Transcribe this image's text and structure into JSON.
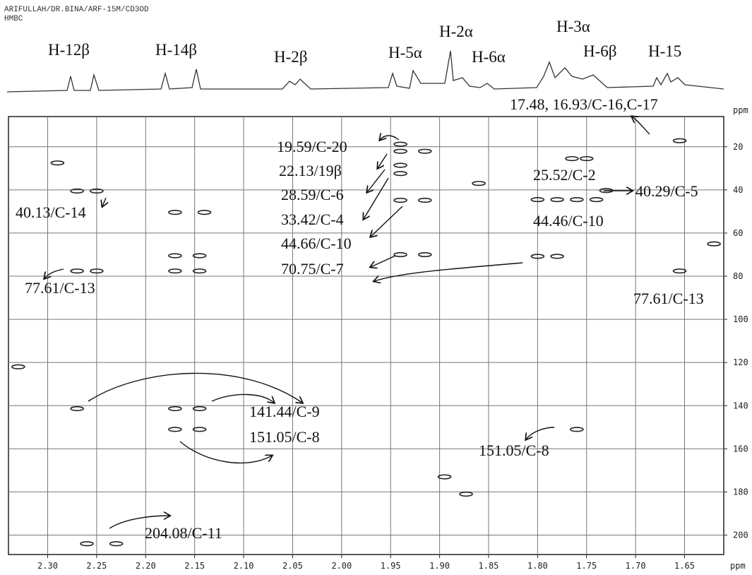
{
  "header": [
    "ARIFULLAH/DR.BINA/ARF-15M/CD3OD",
    "HMBC"
  ],
  "chart_data": {
    "type": "scatter",
    "x_label": "ppm",
    "y_label": "ppm",
    "xlim": [
      2.34,
      1.61
    ],
    "ylim": [
      6,
      209
    ],
    "xticks": [
      {
        "value": 2.3,
        "label": "2.30"
      },
      {
        "value": 2.25,
        "label": "2.25"
      },
      {
        "value": 2.2,
        "label": "2.20"
      },
      {
        "value": 2.15,
        "label": "2.15"
      },
      {
        "value": 2.1,
        "label": "2.10"
      },
      {
        "value": 2.05,
        "label": "2.05"
      },
      {
        "value": 2.0,
        "label": "2.00"
      },
      {
        "value": 1.95,
        "label": "1.95"
      },
      {
        "value": 1.9,
        "label": "1.90"
      },
      {
        "value": 1.85,
        "label": "1.85"
      },
      {
        "value": 1.8,
        "label": "1.80"
      },
      {
        "value": 1.75,
        "label": "1.75"
      },
      {
        "value": 1.7,
        "label": "1.70"
      },
      {
        "value": 1.65,
        "label": "1.65"
      }
    ],
    "yticks": [
      20,
      40,
      60,
      80,
      100,
      120,
      140,
      160,
      180,
      200
    ],
    "grid": true,
    "color": "#222",
    "x": [
      2.27,
      2.25,
      2.27,
      2.25,
      2.17,
      2.14,
      2.17,
      2.145,
      2.17,
      2.145,
      2.17,
      2.145,
      2.17,
      2.145,
      2.27,
      2.26,
      2.23,
      1.94,
      1.94,
      1.915,
      1.94,
      1.94,
      1.94,
      1.915,
      1.94,
      1.915,
      1.86,
      1.873,
      1.895,
      1.8,
      1.78,
      1.76,
      1.74,
      1.765,
      1.75,
      1.73,
      1.8,
      1.78,
      1.76,
      1.655,
      1.655,
      1.62,
      2.33,
      2.29
    ],
    "values": [
      40.5,
      40.5,
      77.6,
      77.6,
      50.4,
      50.4,
      70.5,
      70.5,
      77.6,
      77.6,
      141.4,
      141.4,
      151,
      151,
      141.4,
      204,
      204,
      18.8,
      22.1,
      22.1,
      28.6,
      32.4,
      44.8,
      44.8,
      70,
      70,
      37,
      181,
      173,
      44.5,
      44.5,
      44.5,
      44.5,
      25.5,
      25.5,
      40.3,
      70.8,
      70.8,
      151,
      17.2,
      77.6,
      65,
      122,
      27.5
    ],
    "proton_labels": [
      "H-12β",
      "H-14β",
      "H-2β",
      "H-5α",
      "H-2α",
      "H-6α",
      "H-3α",
      "H-6β",
      "H-15"
    ],
    "annotations": [
      "17.48, 16.93/C-16,C-17",
      "19.59/C-20",
      "22.13/19β",
      "28.59/C-6",
      "33.42/C-4",
      "44.66/C-10",
      "70.75/C-7",
      "25.52/C-2",
      "40.29/C-5",
      "44.46/C-10",
      "40.13/C-14",
      "77.61/C-13",
      "77.61/C-13",
      "141.44/C-9",
      "151.05/C-8",
      "151.05/C-8",
      "204.08/C-11"
    ]
  }
}
